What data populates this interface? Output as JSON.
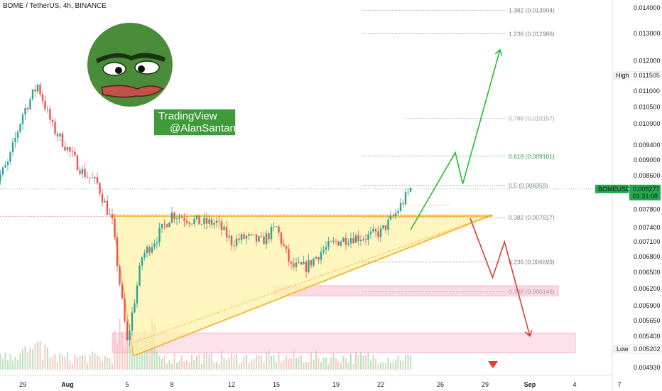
{
  "header": {
    "title": "BOME / TetherUS, 4h, BINANCE"
  },
  "watermark": {
    "line1": "TradingView",
    "line2": "@AlanSantana"
  },
  "colors": {
    "up": "#26a69a",
    "down": "#ef5350",
    "triangle_fill": "#fff2a8",
    "trendline": "#f5a623",
    "support_zone": "#f8bbd0",
    "projection_up": "#22c02a",
    "projection_down": "#e53935",
    "price_tag": "#22ab4a"
  },
  "price_axis": {
    "ticks": [
      "0.014000",
      "0.013000",
      "0.012000",
      "0.011000",
      "0.010500",
      "0.010000",
      "0.009400",
      "0.009000",
      "0.008600",
      "0.007800",
      "0.007400",
      "0.007100",
      "0.006800",
      "0.006500",
      "0.006200",
      "0.005900",
      "0.005650",
      "0.005400",
      "0.004930"
    ],
    "high_label": "High",
    "high_value": "0.011505",
    "low_label": "Low",
    "low_value": "0.005202",
    "symbol_tag": "BOMEUSDT",
    "current_price": "0.008277",
    "countdown": "01:31:08"
  },
  "time_axis": {
    "labels": [
      "29",
      "Aug",
      "5",
      "8",
      "12",
      "15",
      "19",
      "22",
      "26",
      "29",
      "Sep",
      "4",
      "7"
    ]
  },
  "fib_levels": [
    {
      "label": "1.382 (0.013904)",
      "price": 0.013904,
      "color": "#787b86"
    },
    {
      "label": "1.236 (0.012986)",
      "price": 0.012986,
      "color": "#787b86"
    },
    {
      "label": "0.786 (0.010157)",
      "price": 0.010157,
      "color": "#9e9e9e"
    },
    {
      "label": "0.618 (0.009101)",
      "price": 0.009101,
      "color": "#2e9d3a"
    },
    {
      "label": "0.5 (0.008359)",
      "price": 0.008359,
      "color": "#787b86"
    },
    {
      "label": "0.382 (0.007617)",
      "price": 0.007617,
      "color": "#787b86"
    },
    {
      "label": "0.236 (0.006699)",
      "price": 0.006699,
      "color": "#787b86"
    },
    {
      "label": "0.148 (0.006146)",
      "price": 0.006146,
      "color": "#9e9e9e"
    }
  ],
  "chart_data": {
    "type": "candlestick",
    "symbol": "BOME / TetherUS",
    "interval": "4h",
    "exchange": "BINANCE",
    "y_scale": "log",
    "ylim": [
      0.00475,
      0.0142
    ],
    "close_path": [
      [
        "Jul 27",
        0.00835
      ],
      [
        "Jul 28",
        0.0089
      ],
      [
        "Jul 29",
        0.0103
      ],
      [
        "Jul 30",
        0.0112
      ],
      [
        "Jul 31",
        0.0099
      ],
      [
        "Aug 1",
        0.0093
      ],
      [
        "Aug 2",
        0.0087
      ],
      [
        "Aug 3",
        0.0084
      ],
      [
        "Aug 4",
        0.0075
      ],
      [
        "Aug 5",
        0.0053
      ],
      [
        "Aug 6",
        0.0068
      ],
      [
        "Aug 7",
        0.0072
      ],
      [
        "Aug 8",
        0.0077
      ],
      [
        "Aug 9",
        0.0076
      ],
      [
        "Aug 10",
        0.0075
      ],
      [
        "Aug 11",
        0.0075
      ],
      [
        "Aug 12",
        0.0071
      ],
      [
        "Aug 13",
        0.0072
      ],
      [
        "Aug 14",
        0.0071
      ],
      [
        "Aug 15",
        0.0074
      ],
      [
        "Aug 16",
        0.0066
      ],
      [
        "Aug 17",
        0.0066
      ],
      [
        "Aug 18",
        0.0069
      ],
      [
        "Aug 19",
        0.0071
      ],
      [
        "Aug 20",
        0.0072
      ],
      [
        "Aug 21",
        0.0072
      ],
      [
        "Aug 22",
        0.0073
      ],
      [
        "Aug 23",
        0.0077
      ],
      [
        "Aug 24",
        0.00828
      ]
    ],
    "resistance": 0.00765,
    "support_zones": [
      [
        0.00607,
        0.00625
      ],
      [
        0.00515,
        0.00545
      ]
    ],
    "projections": [
      {
        "name": "bullish",
        "points": [
          [
            "Aug 24",
            0.00735
          ],
          [
            "Aug 27",
            0.0092
          ],
          [
            "Aug 27.5",
            0.0084
          ],
          [
            "Aug 30",
            0.0124
          ]
        ]
      },
      {
        "name": "bearish",
        "points": [
          [
            "Aug 28",
            0.0076
          ],
          [
            "Aug 29.5",
            0.0064
          ],
          [
            "Aug 30.3",
            0.0071
          ],
          [
            "Sep 1",
            0.0054
          ]
        ]
      }
    ]
  }
}
